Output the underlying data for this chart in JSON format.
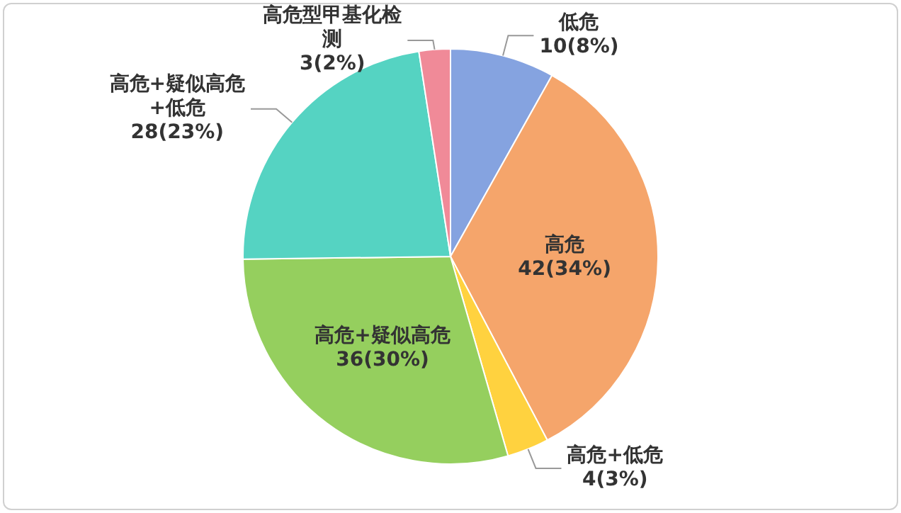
{
  "chart_data": {
    "type": "pie",
    "categories": [
      "低危",
      "高危",
      "高危+低危",
      "高危+疑似高危",
      "高危+疑似高危+低危",
      "高危型甲基化检测"
    ],
    "values": [
      10,
      42,
      4,
      36,
      28,
      3
    ],
    "colors": [
      "#85a3e0",
      "#f5a56b",
      "#ffd23f",
      "#95cf5e",
      "#55d3c2",
      "#f08a98"
    ],
    "value_labels": [
      "10(8%)",
      "42(34%)",
      "4(3%)",
      "36(30%)",
      "28(23%)",
      "3(2%)"
    ]
  }
}
